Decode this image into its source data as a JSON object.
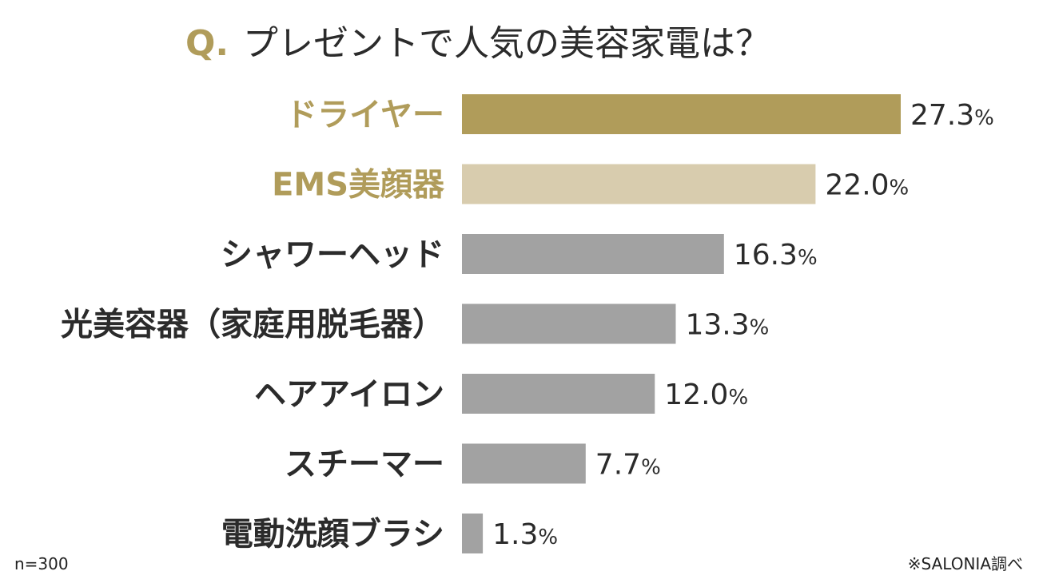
{
  "chart_data": {
    "type": "bar",
    "orientation": "horizontal",
    "title_prefix": "Q.",
    "title": "プレゼントで人気の美容家電は？",
    "categories": [
      "ドライヤー",
      "EMS美顔器",
      "シャワーヘッド",
      "光美容器（家庭用脱毛器）",
      "ヘアアイロン",
      "スチーマー",
      "電動洗顔ブラシ"
    ],
    "values": [
      27.3,
      22.0,
      16.3,
      13.3,
      12.0,
      7.7,
      1.3
    ],
    "value_labels": [
      "27.3",
      "22.0",
      "16.3",
      "13.3",
      "12.0",
      "7.7",
      "1.3"
    ],
    "unit": "%",
    "xlim": [
      0,
      35
    ],
    "grid": false,
    "legend": "none",
    "sample_note": "n=300",
    "source_note": "※SALONIA調べ",
    "colors": {
      "gold": "#b09c5a",
      "light_gold": "#d8ccae",
      "gray": "#a2a2a2",
      "text": "#2b2b2b"
    },
    "bar_colors": [
      "gold",
      "light_gold",
      "gray",
      "gray",
      "gray",
      "gray",
      "gray"
    ],
    "label_colors": [
      "gold",
      "gold",
      "text",
      "text",
      "text",
      "text",
      "text"
    ]
  }
}
